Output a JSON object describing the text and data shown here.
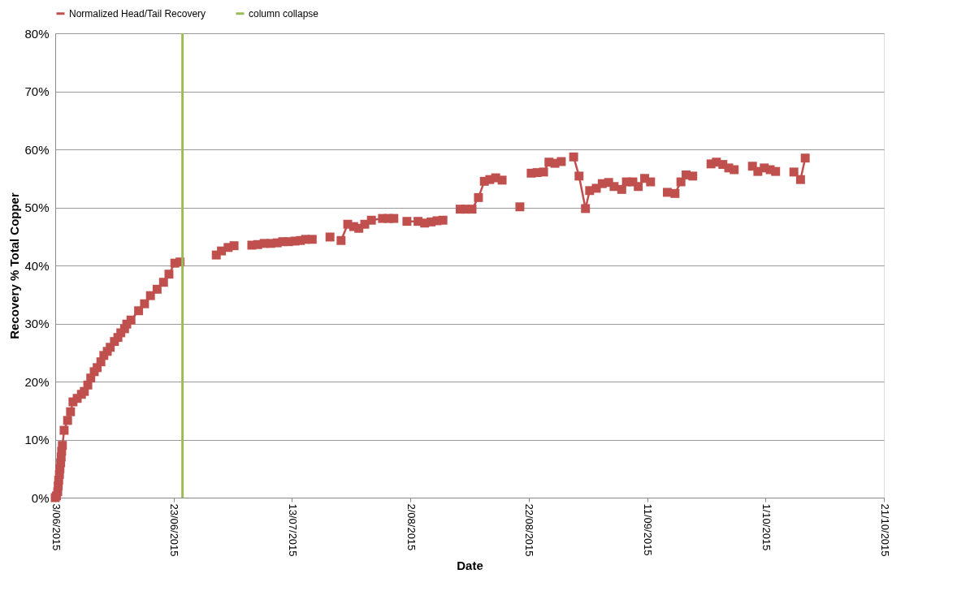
{
  "chart_data": {
    "type": "line",
    "xlabel": "Date",
    "ylabel": "Recovery % Total Copper",
    "xlim": [
      "2015-06-03",
      "2015-10-21"
    ],
    "xticks": [
      {
        "value": "2015-06-03",
        "label": "3/06/2015"
      },
      {
        "value": "2015-06-23",
        "label": "23/06/2015"
      },
      {
        "value": "2015-07-13",
        "label": "13/07/2015"
      },
      {
        "value": "2015-08-02",
        "label": "2/08/2015"
      },
      {
        "value": "2015-08-22",
        "label": "22/08/2015"
      },
      {
        "value": "2015-09-11",
        "label": "11/09/2015"
      },
      {
        "value": "2015-10-01",
        "label": "1/10/2015"
      },
      {
        "value": "2015-10-21",
        "label": "21/10/2015"
      }
    ],
    "ylim": [
      0,
      80
    ],
    "yticks": [
      {
        "value": 0,
        "label": "0%"
      },
      {
        "value": 10,
        "label": "10%"
      },
      {
        "value": 20,
        "label": "20%"
      },
      {
        "value": 30,
        "label": "30%"
      },
      {
        "value": 40,
        "label": "40%"
      },
      {
        "value": 50,
        "label": "50%"
      },
      {
        "value": 60,
        "label": "60%"
      },
      {
        "value": 70,
        "label": "70%"
      },
      {
        "value": 80,
        "label": "80%"
      }
    ],
    "grid": "y",
    "legend": "top",
    "marker": "square",
    "line_style": "solid",
    "x": [
      "2015-06-03T00:00",
      "2015-06-03T05:00",
      "2015-06-03T10:00",
      "2015-06-03T12:00",
      "2015-06-03T14:00",
      "2015-06-03T17:00",
      "2015-06-03T19:00",
      "2015-06-03T22:00",
      "2015-06-04T00:00",
      "2015-06-04T02:00",
      "2015-06-04T05:00",
      "2015-06-04T12:00",
      "2015-06-05T02:00",
      "2015-06-05T14:00",
      "2015-06-06T00:00",
      "2015-06-06T17:00",
      "2015-06-07T10:00",
      "2015-06-07T22:00",
      "2015-06-08T12:00",
      "2015-06-09T00:00",
      "2015-06-09T14:00",
      "2015-06-10T02:00",
      "2015-06-10T17:00",
      "2015-06-11T05:00",
      "2015-06-11T19:00",
      "2015-06-12T07:00",
      "2015-06-13T00:00",
      "2015-06-13T14:00",
      "2015-06-14T02:00",
      "2015-06-14T17:00",
      "2015-06-15T02:00",
      "2015-06-15T19:00",
      "2015-06-17T02:00",
      "2015-06-18T02:00",
      "2015-06-19T02:00",
      "2015-06-20T05:00",
      "2015-06-21T07:00",
      "2015-06-22T05:00",
      "2015-06-23T05:00",
      "2015-06-24T02:00",
      "2015-06-27T00:00",
      "2015-06-30T05:00",
      "2015-07-01T02:00",
      "2015-07-02T05:00",
      "2015-07-03T05:00",
      "2015-07-04T12:00",
      "2015-07-06T05:00",
      "2015-07-07T05:00",
      "2015-07-08T07:00",
      "2015-07-09T10:00",
      "2015-07-10T12:00",
      "2015-07-11T10:00",
      "2015-07-12T10:00",
      "2015-07-13T12:00",
      "2015-07-14T10:00",
      "2015-07-15T07:00",
      "2015-07-16T10:00",
      "2015-07-17T22:00",
      "2015-07-19T10:00",
      "2015-07-20T12:00",
      "2015-07-21T07:00",
      "2015-07-22T10:00",
      "2015-07-23T10:00",
      "2015-07-24T07:00",
      "2015-07-25T07:00",
      "2015-07-26T10:00",
      "2015-07-28T07:00",
      "2015-07-29T07:00",
      "2015-07-30T05:00",
      "2015-07-31T07:00",
      "2015-08-01T10:00",
      "2015-08-03T07:00",
      "2015-08-04T10:00",
      "2015-08-05T12:00",
      "2015-08-06T12:00",
      "2015-08-07T12:00",
      "2015-08-09T00:00",
      "2015-08-10T10:00",
      "2015-08-11T07:00",
      "2015-08-12T10:00",
      "2015-08-13T12:00",
      "2015-08-14T12:00",
      "2015-08-15T10:00",
      "2015-08-16T10:00",
      "2015-08-17T12:00",
      "2015-08-19T00:00",
      "2015-08-20T12:00",
      "2015-08-21T12:00",
      "2015-08-22T10:00",
      "2015-08-23T10:00",
      "2015-08-24T12:00",
      "2015-08-25T10:00",
      "2015-08-26T10:00",
      "2015-08-27T12:00",
      "2015-08-28T14:00",
      "2015-08-29T14:00",
      "2015-08-30T12:00",
      "2015-08-31T14:00",
      "2015-09-01T07:00",
      "2015-09-02T10:00",
      "2015-09-03T10:00",
      "2015-09-04T12:00",
      "2015-09-05T10:00",
      "2015-09-06T17:00",
      "2015-09-07T12:00",
      "2015-09-08T14:00",
      "2015-09-09T12:00",
      "2015-09-10T14:00",
      "2015-09-11T14:00",
      "2015-09-13T00:00",
      "2015-09-14T10:00",
      "2015-09-15T17:00",
      "2015-09-16T17:00",
      "2015-09-17T14:00",
      "2015-09-18T17:00",
      "2015-09-20T07:00",
      "2015-09-21T19:00",
      "2015-09-22T17:00",
      "2015-09-23T19:00",
      "2015-09-24T19:00",
      "2015-09-25T17:00",
      "2015-09-27T07:00",
      "2015-09-28T19:00",
      "2015-09-29T17:00",
      "2015-09-30T19:00",
      "2015-10-01T19:00",
      "2015-10-02T17:00",
      "2015-10-04T07:00",
      "2015-10-05T19:00",
      "2015-10-06T22:00",
      "2015-10-07T17:00"
    ],
    "series": [
      {
        "name": "Normalized Head/Tail Recovery",
        "color": "#c0504d",
        "values": [
          0,
          0.3,
          1,
          2,
          3,
          4,
          5,
          6,
          7,
          8,
          9,
          11.6,
          13.3,
          14.8,
          16.5,
          17.1,
          17.8,
          18.3,
          19.4,
          20.6,
          21.7,
          22.4,
          23.4,
          24.5,
          25.2,
          25.9,
          26.9,
          27.6,
          28.4,
          29.1,
          29.9,
          30.6,
          32.2,
          33.4,
          34.8,
          35.9,
          37.1,
          38.5,
          40.4,
          40.6,
          null,
          41.8,
          42.5,
          43.1,
          43.4,
          null,
          43.5,
          43.6,
          43.8,
          43.8,
          43.9,
          44.1,
          44.1,
          44.2,
          44.3,
          44.5,
          44.5,
          null,
          44.9,
          null,
          44.3,
          47.1,
          46.7,
          46.4,
          47.1,
          47.8,
          48.1,
          48.1,
          48.1,
          null,
          47.6,
          47.6,
          47.3,
          47.5,
          47.7,
          47.8,
          null,
          49.7,
          49.7,
          49.7,
          51.7,
          54.5,
          54.8,
          55.1,
          54.7,
          null,
          50.1,
          null,
          55.9,
          56.0,
          56.1,
          57.8,
          57.6,
          57.9,
          null,
          58.7,
          55.4,
          49.8,
          52.9,
          53.3,
          54.1,
          54.3,
          53.6,
          53.1,
          54.4,
          54.4,
          53.6,
          55.0,
          54.4,
          null,
          52.6,
          52.4,
          54.4,
          55.6,
          55.4,
          null,
          57.5,
          57.8,
          57.4,
          56.8,
          56.5,
          null,
          57.1,
          56.2,
          56.8,
          56.5,
          56.2,
          null,
          56.1,
          54.8,
          58.5
        ]
      }
    ],
    "ref_lines": [
      {
        "axis": "x",
        "value": "2015-06-24T12:00",
        "label": "column collapse",
        "color": "#9bbb59",
        "line_style": "solid"
      }
    ]
  }
}
